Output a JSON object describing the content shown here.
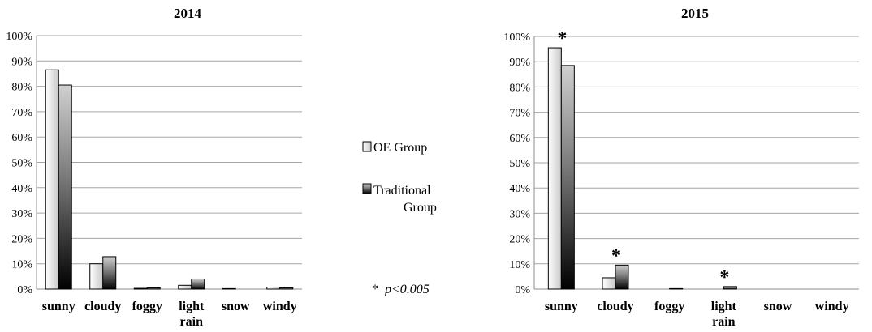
{
  "legend": {
    "items": [
      {
        "name": "OE Group",
        "label_lines": [
          "OE Group"
        ]
      },
      {
        "name": "Traditional Group",
        "label_lines": [
          "Traditional",
          "Group"
        ]
      }
    ],
    "note_star": "*",
    "note_text": "p<0.005"
  },
  "chart_data": [
    {
      "type": "bar",
      "title": "2014",
      "categories": [
        "sunny",
        "cloudy",
        "foggy",
        "light rain",
        "snow",
        "windy"
      ],
      "category_lines": [
        [
          "sunny"
        ],
        [
          "cloudy"
        ],
        [
          "foggy"
        ],
        [
          "light",
          "rain"
        ],
        [
          "snow"
        ],
        [
          "windy"
        ]
      ],
      "series": [
        {
          "name": "OE Group",
          "values": [
            86.5,
            10.0,
            0.3,
            1.5,
            0.2,
            0.8
          ]
        },
        {
          "name": "Traditional Group",
          "values": [
            80.5,
            12.8,
            0.5,
            4.0,
            0.0,
            0.5
          ]
        }
      ],
      "ylim": [
        0,
        100
      ],
      "yticks": [
        "0%",
        "10%",
        "20%",
        "30%",
        "40%",
        "50%",
        "60%",
        "70%",
        "80%",
        "90%",
        "100%"
      ],
      "grid": true,
      "significant": [],
      "star": "*"
    },
    {
      "type": "bar",
      "title": "2015",
      "categories": [
        "sunny",
        "cloudy",
        "foggy",
        "light rain",
        "snow",
        "windy"
      ],
      "category_lines": [
        [
          "sunny"
        ],
        [
          "cloudy"
        ],
        [
          "foggy"
        ],
        [
          "light",
          "rain"
        ],
        [
          "snow"
        ],
        [
          "windy"
        ]
      ],
      "series": [
        {
          "name": "OE Group",
          "values": [
            95.5,
            4.5,
            0.0,
            0.0,
            0.0,
            0.0
          ]
        },
        {
          "name": "Traditional Group",
          "values": [
            88.5,
            9.5,
            0.2,
            1.0,
            0.0,
            0.0
          ]
        }
      ],
      "ylim": [
        0,
        100
      ],
      "yticks": [
        "0%",
        "10%",
        "20%",
        "30%",
        "40%",
        "50%",
        "60%",
        "70%",
        "80%",
        "90%",
        "100%"
      ],
      "grid": true,
      "significant": [
        "sunny",
        "cloudy",
        "light rain"
      ],
      "star": "*"
    }
  ]
}
